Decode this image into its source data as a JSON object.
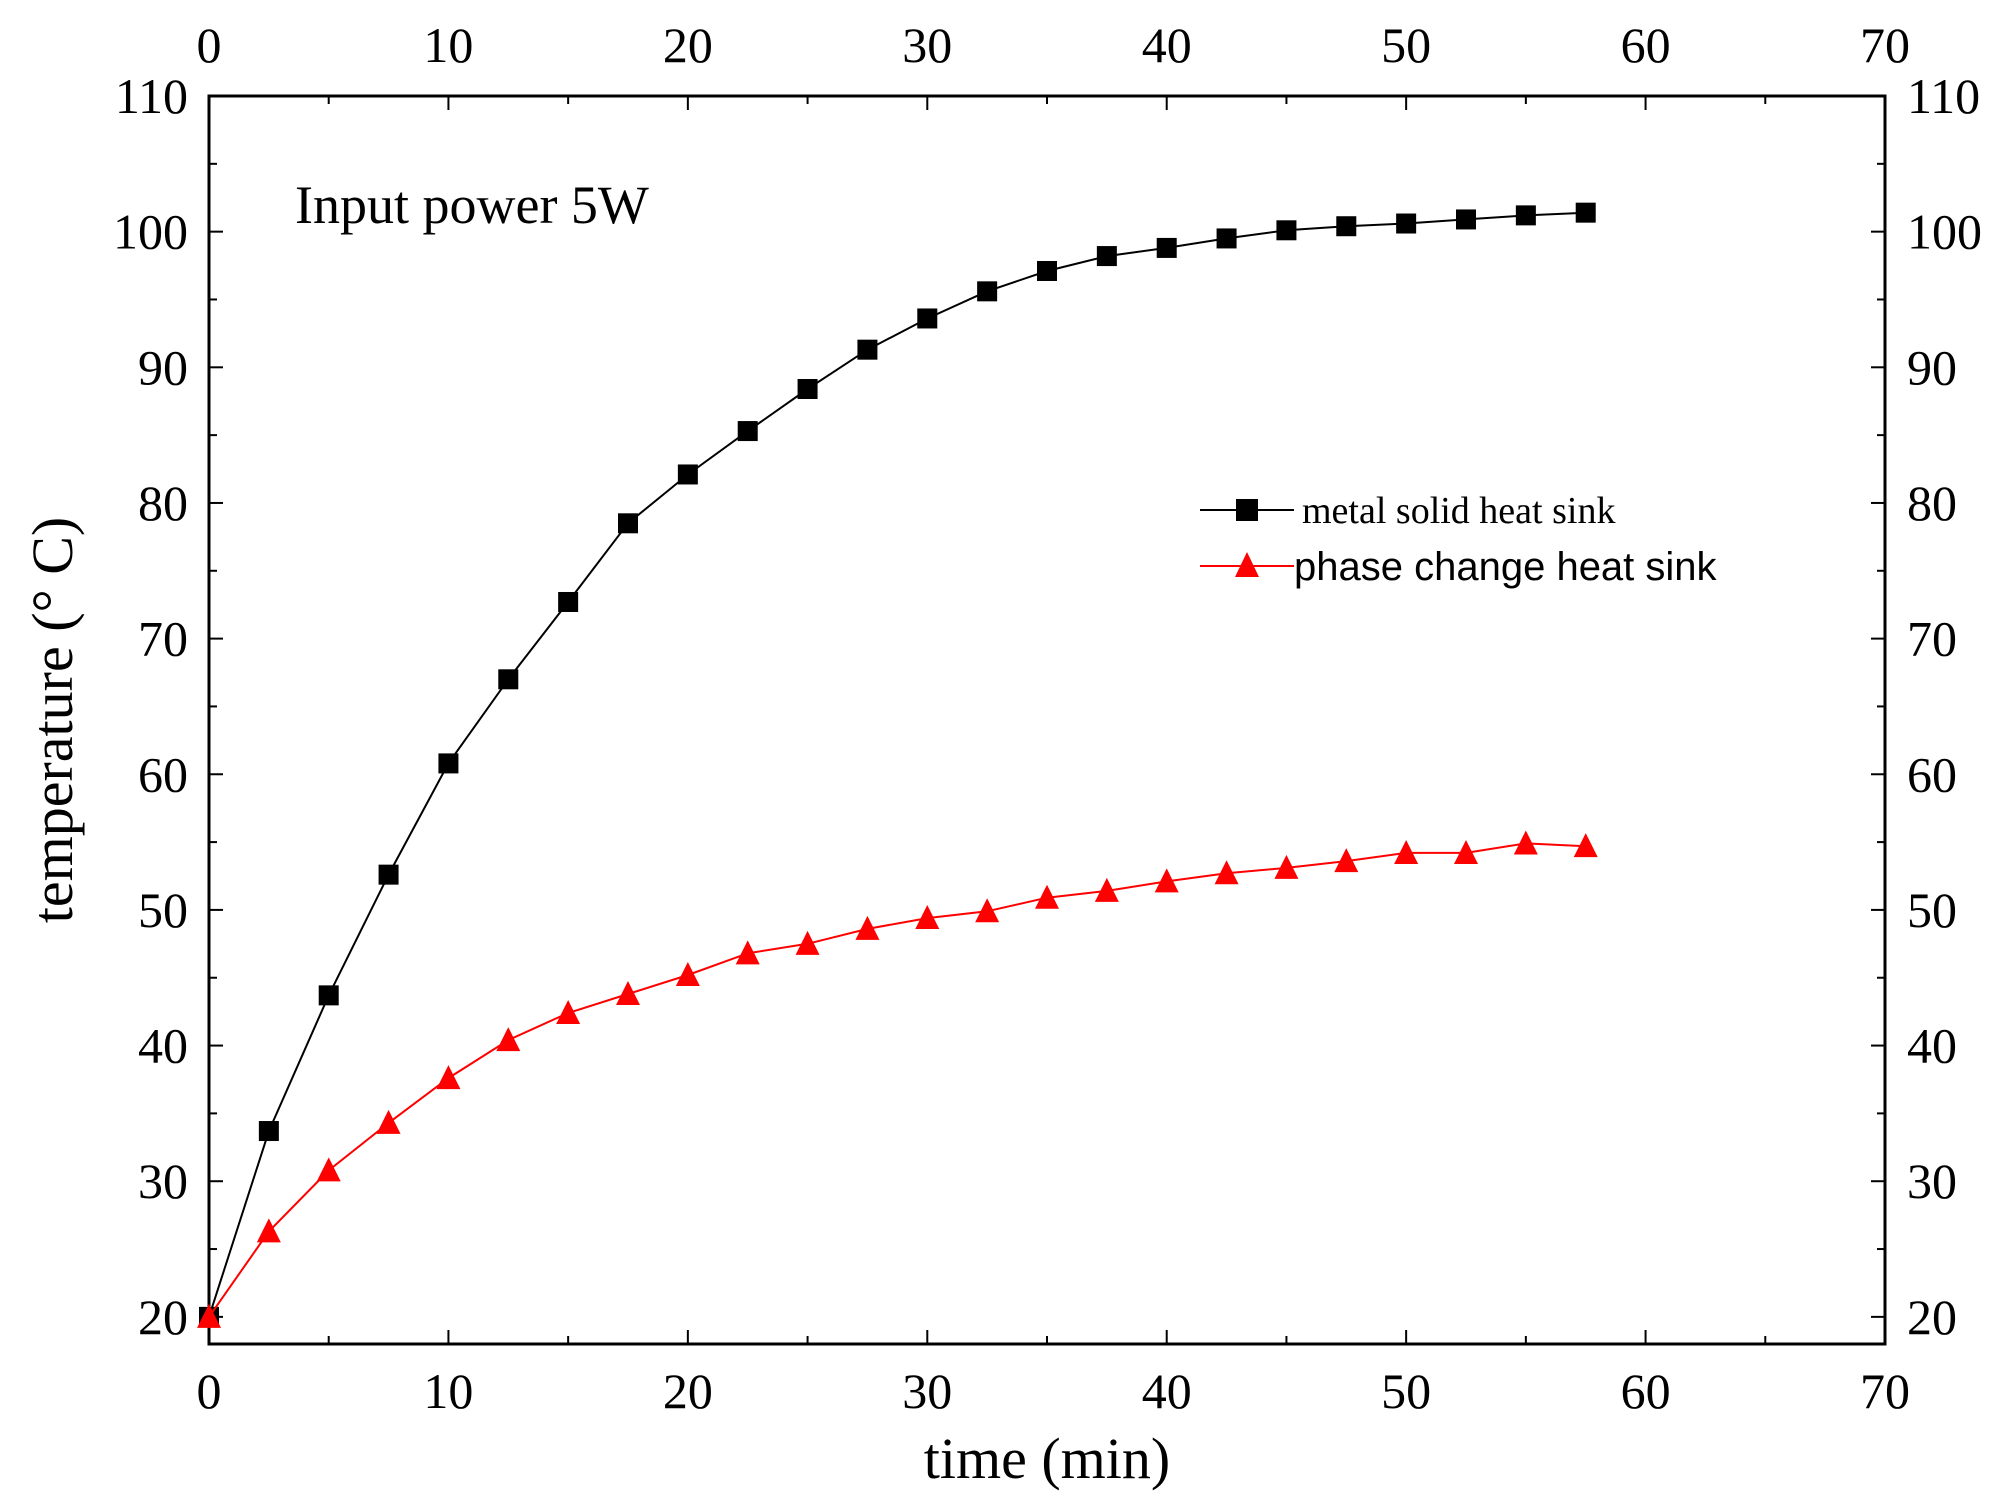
{
  "chart_data": {
    "type": "line",
    "xlabel": "time (min)",
    "ylabel": "temperature (° C)",
    "xlim": [
      0,
      70
    ],
    "ylim": [
      18,
      110
    ],
    "x_ticks": [
      0,
      10,
      20,
      30,
      40,
      50,
      60,
      70
    ],
    "y_ticks": [
      20,
      30,
      40,
      50,
      60,
      70,
      80,
      90,
      100,
      110
    ],
    "x_tick_labels": [
      "0",
      "10",
      "20",
      "30",
      "40",
      "50",
      "60",
      "70"
    ],
    "y_tick_labels": [
      "20",
      "30",
      "40",
      "50",
      "60",
      "70",
      "80",
      "90",
      "100",
      "110"
    ],
    "annotation": "Input power 5W",
    "grid": false,
    "legend_position": "middle-right",
    "x": [
      0,
      2.5,
      5,
      7.5,
      10,
      12.5,
      15,
      17.5,
      20,
      22.5,
      25,
      27.5,
      30,
      32.5,
      35,
      37.5,
      40,
      42.5,
      45,
      47.5,
      50,
      52.5,
      55,
      57.5
    ],
    "series": [
      {
        "name": "metal solid heat sink",
        "color": "#000000",
        "marker": "square",
        "values": [
          20,
          33.7,
          43.7,
          52.6,
          60.8,
          67,
          72.7,
          78.5,
          82.1,
          85.3,
          88.4,
          91.3,
          93.6,
          95.6,
          97.1,
          98.2,
          98.8,
          99.5,
          100.1,
          100.4,
          100.6,
          100.9,
          101.2,
          101.4
        ]
      },
      {
        "name": "phase change heat sink",
        "color": "#ff0000",
        "marker": "triangle",
        "values": [
          20,
          26.3,
          30.8,
          34.3,
          37.6,
          40.4,
          42.4,
          43.8,
          45.2,
          46.8,
          47.5,
          48.6,
          49.4,
          49.9,
          50.9,
          51.4,
          52.1,
          52.7,
          53.1,
          53.6,
          54.2,
          54.2,
          54.9,
          54.7
        ]
      }
    ]
  }
}
